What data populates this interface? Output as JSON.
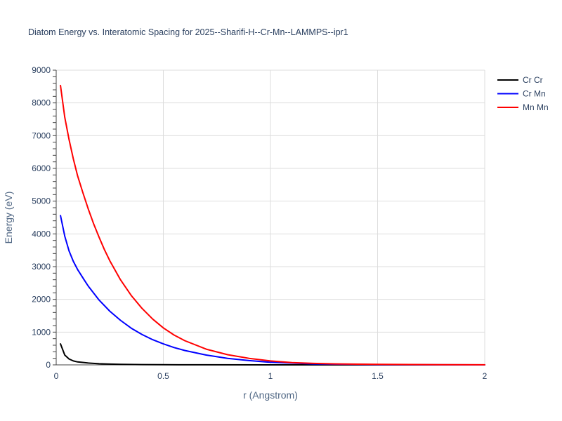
{
  "chart_data": {
    "type": "line",
    "title": "Diatom Energy vs. Interatomic Spacing for 2025--Sharifi-H--Cr-Mn--LAMMPS--ipr1",
    "xlabel": "r (Angstrom)",
    "ylabel": "Energy (eV)",
    "xlim": [
      0,
      2
    ],
    "ylim": [
      0,
      9000
    ],
    "x_ticks": [
      0,
      0.5,
      1,
      1.5,
      2
    ],
    "x_tick_labels": [
      "0",
      "0.5",
      "1",
      "1.5",
      "2"
    ],
    "y_ticks": [
      0,
      1000,
      2000,
      3000,
      4000,
      5000,
      6000,
      7000,
      8000,
      9000
    ],
    "y_tick_labels": [
      "0",
      "1000",
      "2000",
      "3000",
      "4000",
      "5000",
      "6000",
      "7000",
      "8000",
      "9000"
    ],
    "grid": true,
    "legend_position": "top-right",
    "series": [
      {
        "name": "Cr Cr",
        "color": "#000000",
        "points": [
          [
            0.02,
            640
          ],
          [
            0.04,
            300
          ],
          [
            0.06,
            180
          ],
          [
            0.08,
            120
          ],
          [
            0.1,
            90
          ],
          [
            0.15,
            55
          ],
          [
            0.2,
            35
          ],
          [
            0.25,
            24
          ],
          [
            0.3,
            16
          ],
          [
            0.4,
            9
          ],
          [
            0.5,
            5
          ],
          [
            0.7,
            2
          ],
          [
            1.0,
            0
          ],
          [
            1.5,
            0
          ],
          [
            2.0,
            0
          ]
        ]
      },
      {
        "name": "Cr Mn",
        "color": "#0000ff",
        "points": [
          [
            0.02,
            4560
          ],
          [
            0.04,
            3930
          ],
          [
            0.06,
            3480
          ],
          [
            0.08,
            3160
          ],
          [
            0.1,
            2910
          ],
          [
            0.13,
            2600
          ],
          [
            0.15,
            2400
          ],
          [
            0.2,
            1980
          ],
          [
            0.25,
            1640
          ],
          [
            0.3,
            1360
          ],
          [
            0.35,
            1120
          ],
          [
            0.4,
            930
          ],
          [
            0.45,
            770
          ],
          [
            0.5,
            640
          ],
          [
            0.55,
            530
          ],
          [
            0.6,
            440
          ],
          [
            0.7,
            300
          ],
          [
            0.8,
            200
          ],
          [
            0.9,
            130
          ],
          [
            1.0,
            80
          ],
          [
            1.2,
            30
          ],
          [
            1.5,
            8
          ],
          [
            2.0,
            0
          ]
        ]
      },
      {
        "name": "Mn Mn",
        "color": "#ff0000",
        "points": [
          [
            0.02,
            8530
          ],
          [
            0.04,
            7560
          ],
          [
            0.06,
            6880
          ],
          [
            0.08,
            6290
          ],
          [
            0.1,
            5770
          ],
          [
            0.125,
            5250
          ],
          [
            0.15,
            4750
          ],
          [
            0.175,
            4300
          ],
          [
            0.2,
            3900
          ],
          [
            0.225,
            3520
          ],
          [
            0.25,
            3180
          ],
          [
            0.3,
            2600
          ],
          [
            0.35,
            2120
          ],
          [
            0.4,
            1730
          ],
          [
            0.45,
            1400
          ],
          [
            0.5,
            1130
          ],
          [
            0.55,
            910
          ],
          [
            0.6,
            740
          ],
          [
            0.7,
            480
          ],
          [
            0.8,
            310
          ],
          [
            0.9,
            200
          ],
          [
            1.0,
            120
          ],
          [
            1.1,
            70
          ],
          [
            1.2,
            45
          ],
          [
            1.3,
            30
          ],
          [
            1.5,
            15
          ],
          [
            1.8,
            5
          ],
          [
            2.0,
            3
          ]
        ]
      }
    ]
  }
}
